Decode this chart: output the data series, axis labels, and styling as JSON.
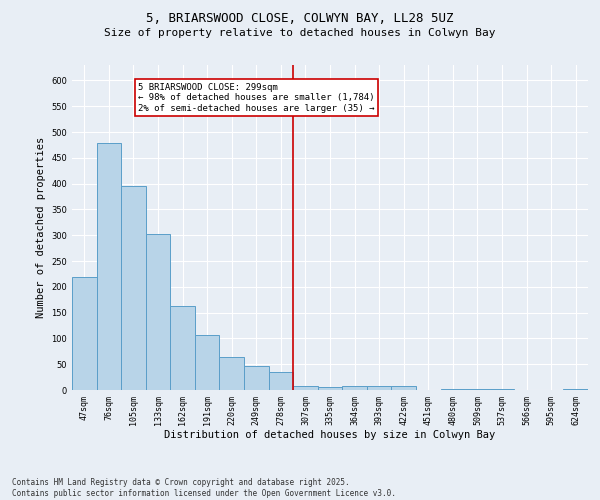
{
  "title_line1": "5, BRIARSWOOD CLOSE, COLWYN BAY, LL28 5UZ",
  "title_line2": "Size of property relative to detached houses in Colwyn Bay",
  "xlabel": "Distribution of detached houses by size in Colwyn Bay",
  "ylabel": "Number of detached properties",
  "categories": [
    "47sqm",
    "76sqm",
    "105sqm",
    "133sqm",
    "162sqm",
    "191sqm",
    "220sqm",
    "249sqm",
    "278sqm",
    "307sqm",
    "335sqm",
    "364sqm",
    "393sqm",
    "422sqm",
    "451sqm",
    "480sqm",
    "509sqm",
    "537sqm",
    "566sqm",
    "595sqm",
    "624sqm"
  ],
  "values": [
    219,
    479,
    396,
    302,
    163,
    106,
    64,
    47,
    34,
    8,
    6,
    7,
    7,
    8,
    0,
    2,
    1,
    1,
    0,
    0,
    1
  ],
  "bar_color": "#b8d4e8",
  "bar_edge_color": "#5a9ec9",
  "vline_x_index": 8.5,
  "vline_color": "#cc0000",
  "annotation_text": "5 BRIARSWOOD CLOSE: 299sqm\n← 98% of detached houses are smaller (1,784)\n2% of semi-detached houses are larger (35) →",
  "annotation_box_color": "#cc0000",
  "annotation_box_facecolor": "#ffffff",
  "ylim": [
    0,
    630
  ],
  "yticks": [
    0,
    50,
    100,
    150,
    200,
    250,
    300,
    350,
    400,
    450,
    500,
    550,
    600
  ],
  "background_color": "#e8eef5",
  "plot_background_color": "#e8eef5",
  "footer_text": "Contains HM Land Registry data © Crown copyright and database right 2025.\nContains public sector information licensed under the Open Government Licence v3.0.",
  "title_fontsize": 9,
  "subtitle_fontsize": 8,
  "tick_fontsize": 6,
  "label_fontsize": 7.5,
  "annotation_fontsize": 6.5,
  "footer_fontsize": 5.5
}
